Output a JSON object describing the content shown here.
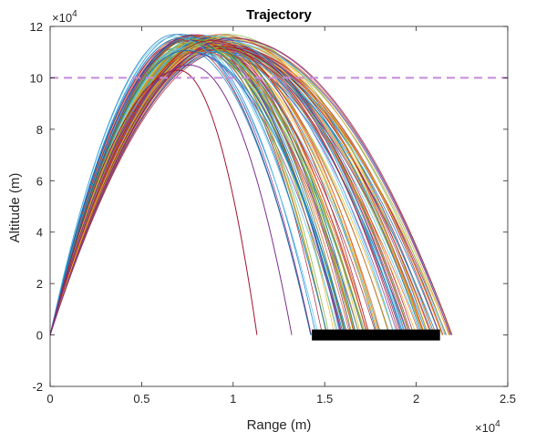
{
  "chart_data": {
    "type": "line",
    "title": "Trajectory",
    "xlabel": "Range (m)",
    "ylabel": "Altitude (m)",
    "x_exponent_label": "×10^4",
    "y_exponent_label": "×10^4",
    "xlim": [
      0,
      25000
    ],
    "ylim": [
      -20000,
      120000
    ],
    "xticks": [
      0,
      5000,
      10000,
      15000,
      20000,
      25000
    ],
    "xtick_labels": [
      "0",
      "0.5",
      "1",
      "1.5",
      "2",
      "2.5"
    ],
    "yticks": [
      -20000,
      0,
      20000,
      40000,
      60000,
      80000,
      100000,
      120000
    ],
    "ytick_labels": [
      "-2",
      "0",
      "2",
      "4",
      "6",
      "8",
      "10",
      "12"
    ],
    "grid": false,
    "reference_line": {
      "y": 100000,
      "color": "#c68bd9",
      "style": "dashed"
    },
    "target_band": {
      "x_start": 14300,
      "x_end": 21300,
      "y": 0,
      "color": "#000000"
    },
    "trajectory_family": {
      "count": 120,
      "apex_altitude_range": [
        102000,
        118000
      ],
      "apex_range_x_range": [
        6700,
        10000
      ],
      "impact_range_x_range": [
        11200,
        22000
      ],
      "outliers": [
        {
          "apex_x": 7000,
          "apex_y": 103000,
          "impact_x": 11300,
          "color": "#a2142f"
        },
        {
          "apex_x": 7600,
          "apex_y": 105000,
          "impact_x": 13200,
          "color": "#7e2f8e"
        }
      ]
    },
    "series_colors": [
      "#0072bd",
      "#d95319",
      "#edb120",
      "#7e2f8e",
      "#77ac30",
      "#4dbeee",
      "#a2142f"
    ]
  }
}
